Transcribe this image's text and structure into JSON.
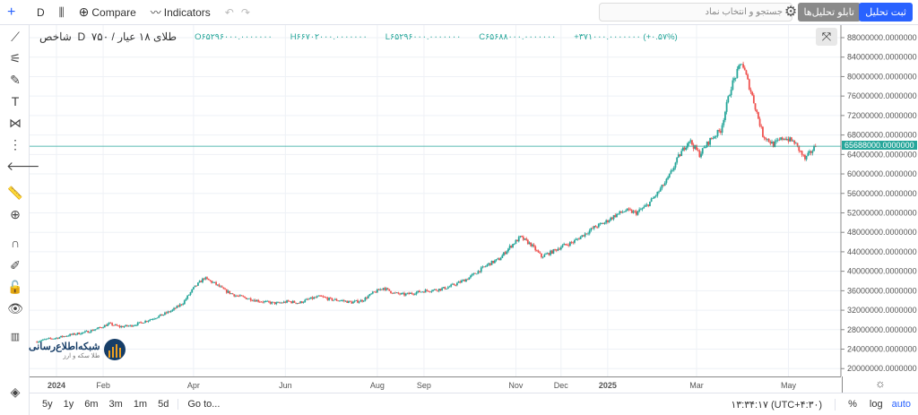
{
  "toolbar": {
    "interval": "D",
    "compare": "Compare",
    "indicators": "Indicators",
    "search_placeholder": "جستجو و انتخاب نماد",
    "analysis_board": "تابلو تحلیل‌ها",
    "save_analysis": "ثبت تحلیل"
  },
  "legend": {
    "title": "طلای ۱۸ عیار / ۷۵۰",
    "interval": "D",
    "source": "شاخص",
    "open": "O۶۵۲۹۶۰۰۰.۰۰۰۰۰۰۰",
    "high": "H۶۶۷۰۲۰۰۰.۰۰۰۰۰۰۰",
    "low": "L۶۵۲۹۶۰۰۰.۰۰۰۰۰۰۰",
    "close": "C۶۵۶۸۸۰۰۰.۰۰۰۰۰۰۰",
    "change": "+۳۷۱۰۰۰.۰۰۰۰۰۰۰ (+۰.۵۷%)"
  },
  "logo": {
    "name": "شبکه‌اطلاع‌رسانی",
    "tagline": "طلا سکه و ارز"
  },
  "bottom": {
    "ranges": [
      "5y",
      "1y",
      "6m",
      "3m",
      "1m",
      "5d"
    ],
    "goto": "Go to...",
    "clock": "۱۳:۳۴:۱۷ (UTC+۴:۳۰)",
    "percent": "%",
    "log": "log",
    "auto": "auto"
  },
  "colors": {
    "up": "#26a69a",
    "down": "#ef5350",
    "accent": "#2962ff"
  },
  "chart_data": {
    "type": "candlestick",
    "ylim": [
      18000000,
      90000000
    ],
    "yticks": [
      20000000,
      24000000,
      28000000,
      32000000,
      36000000,
      40000000,
      44000000,
      48000000,
      52000000,
      56000000,
      60000000,
      64000000,
      68000000,
      72000000,
      76000000,
      80000000,
      84000000,
      88000000
    ],
    "ytick_suffix": ".0000000",
    "last_price": "65688000.0000000",
    "xticks": [
      [
        "2024-01-01",
        "2024"
      ],
      [
        "2024-02-01",
        "Feb"
      ],
      [
        "2024-04-01",
        "Apr"
      ],
      [
        "2024-06-01",
        "Jun"
      ],
      [
        "2024-08-01",
        "Aug"
      ],
      [
        "2024-09-01",
        "Sep"
      ],
      [
        "2024-11-01",
        "Nov"
      ],
      [
        "2024-12-01",
        "Dec"
      ],
      [
        "2025-01-01",
        "2025"
      ],
      [
        "2025-03-01",
        "Mar"
      ],
      [
        "2025-05-01",
        "May"
      ]
    ],
    "grid": true,
    "weekly_close": [
      [
        "2023-12-18",
        25.5
      ],
      [
        "2023-12-25",
        26.0
      ],
      [
        "2024-01-01",
        26.3
      ],
      [
        "2024-01-08",
        26.8
      ],
      [
        "2024-01-15",
        27.2
      ],
      [
        "2024-01-22",
        27.6
      ],
      [
        "2024-01-29",
        28.3
      ],
      [
        "2024-02-05",
        29.2
      ],
      [
        "2024-02-12",
        28.6
      ],
      [
        "2024-02-19",
        28.8
      ],
      [
        "2024-02-26",
        29.4
      ],
      [
        "2024-03-04",
        30.2
      ],
      [
        "2024-03-11",
        31.0
      ],
      [
        "2024-03-18",
        32.0
      ],
      [
        "2024-03-25",
        33.5
      ],
      [
        "2024-04-01",
        36.5
      ],
      [
        "2024-04-08",
        38.6
      ],
      [
        "2024-04-15",
        37.5
      ],
      [
        "2024-04-22",
        36.0
      ],
      [
        "2024-04-29",
        35.0
      ],
      [
        "2024-05-06",
        34.5
      ],
      [
        "2024-05-13",
        34.0
      ],
      [
        "2024-05-20",
        33.6
      ],
      [
        "2024-05-27",
        33.4
      ],
      [
        "2024-06-03",
        33.8
      ],
      [
        "2024-06-10",
        33.5
      ],
      [
        "2024-06-17",
        34.3
      ],
      [
        "2024-06-24",
        34.8
      ],
      [
        "2024-07-01",
        34.2
      ],
      [
        "2024-07-08",
        34.0
      ],
      [
        "2024-07-15",
        33.6
      ],
      [
        "2024-07-22",
        34.0
      ],
      [
        "2024-07-29",
        35.5
      ],
      [
        "2024-08-05",
        36.6
      ],
      [
        "2024-08-12",
        35.5
      ],
      [
        "2024-08-19",
        35.2
      ],
      [
        "2024-08-26",
        35.6
      ],
      [
        "2024-09-02",
        36.0
      ],
      [
        "2024-09-09",
        36.2
      ],
      [
        "2024-09-16",
        36.6
      ],
      [
        "2024-09-23",
        37.5
      ],
      [
        "2024-09-30",
        38.5
      ],
      [
        "2024-10-07",
        40.0
      ],
      [
        "2024-10-14",
        41.5
      ],
      [
        "2024-10-21",
        42.5
      ],
      [
        "2024-10-28",
        45.0
      ],
      [
        "2024-11-04",
        47.0
      ],
      [
        "2024-11-11",
        45.5
      ],
      [
        "2024-11-18",
        43.0
      ],
      [
        "2024-11-25",
        44.0
      ],
      [
        "2024-12-02",
        45.2
      ],
      [
        "2024-12-09",
        46.0
      ],
      [
        "2024-12-16",
        47.5
      ],
      [
        "2024-12-23",
        49.0
      ],
      [
        "2024-12-30",
        50.0
      ],
      [
        "2025-01-06",
        51.5
      ],
      [
        "2025-01-13",
        52.5
      ],
      [
        "2025-01-20",
        52.0
      ],
      [
        "2025-01-27",
        53.5
      ],
      [
        "2025-02-03",
        56.0
      ],
      [
        "2025-02-10",
        59.0
      ],
      [
        "2025-02-17",
        63.5
      ],
      [
        "2025-02-24",
        67.0
      ],
      [
        "2025-03-03",
        64.0
      ],
      [
        "2025-03-10",
        67.0
      ],
      [
        "2025-03-17",
        69.0
      ],
      [
        "2025-03-24",
        78.0
      ],
      [
        "2025-03-31",
        83.0
      ],
      [
        "2025-04-07",
        76.0
      ],
      [
        "2025-04-14",
        68.0
      ],
      [
        "2025-04-21",
        66.0
      ],
      [
        "2025-04-28",
        67.5
      ],
      [
        "2025-05-05",
        66.5
      ],
      [
        "2025-05-12",
        63.0
      ],
      [
        "2025-05-19",
        65.688
      ]
    ],
    "weekly_close_unit": "millions"
  }
}
